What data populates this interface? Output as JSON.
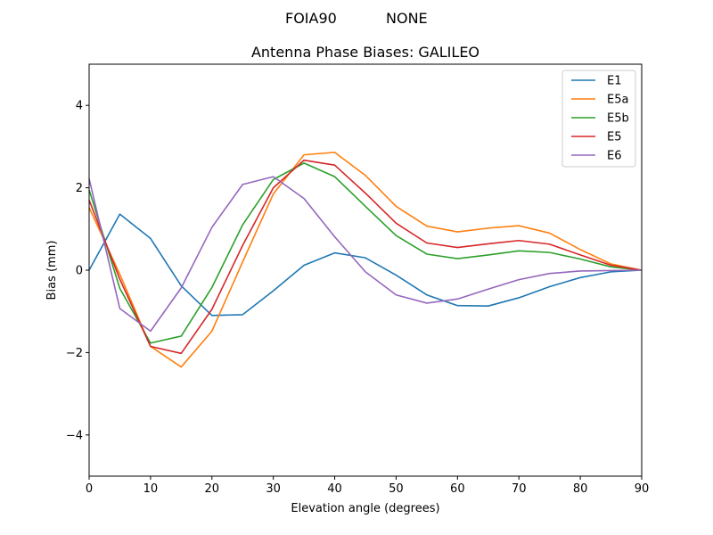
{
  "figure": {
    "suptitle_left": "FOIA90",
    "suptitle_right": "NONE"
  },
  "chart_data": {
    "type": "line",
    "title": "Antenna Phase Biases: GALILEO",
    "xlabel": "Elevation angle (degrees)",
    "ylabel": "Bias (mm)",
    "xlim": [
      0,
      90
    ],
    "ylim": [
      -5,
      5
    ],
    "xticks": [
      0,
      10,
      20,
      30,
      40,
      50,
      60,
      70,
      80,
      90
    ],
    "yticks": [
      -4,
      -2,
      0,
      2,
      4
    ],
    "xtick_labels": [
      "0",
      "10",
      "20",
      "30",
      "40",
      "50",
      "60",
      "70",
      "80",
      "90"
    ],
    "ytick_labels": [
      "−4",
      "−2",
      "0",
      "2",
      "4"
    ],
    "grid": false,
    "legend_position": "top-right",
    "x": [
      0,
      5,
      10,
      15,
      20,
      25,
      30,
      35,
      40,
      45,
      50,
      55,
      60,
      65,
      70,
      75,
      80,
      85,
      90
    ],
    "series": [
      {
        "name": "E1",
        "color": "#1f77b4",
        "values": [
          0.0,
          1.36,
          0.77,
          -0.38,
          -1.1,
          -1.08,
          -0.5,
          0.12,
          0.42,
          0.3,
          -0.12,
          -0.6,
          -0.86,
          -0.87,
          -0.67,
          -0.4,
          -0.18,
          -0.04,
          0.0
        ]
      },
      {
        "name": "E5a",
        "color": "#ff7f0e",
        "values": [
          1.52,
          -0.1,
          -1.85,
          -2.35,
          -1.48,
          0.2,
          1.85,
          2.8,
          2.86,
          2.3,
          1.55,
          1.07,
          0.93,
          1.02,
          1.08,
          0.9,
          0.5,
          0.15,
          0.0
        ]
      },
      {
        "name": "E5b",
        "color": "#2ca02c",
        "values": [
          1.95,
          -0.44,
          -1.77,
          -1.6,
          -0.42,
          1.1,
          2.2,
          2.6,
          2.27,
          1.55,
          0.84,
          0.39,
          0.28,
          0.37,
          0.47,
          0.43,
          0.27,
          0.08,
          0.0
        ]
      },
      {
        "name": "E5",
        "color": "#d62728",
        "values": [
          1.7,
          -0.22,
          -1.85,
          -2.02,
          -0.95,
          0.6,
          2.0,
          2.67,
          2.55,
          1.87,
          1.14,
          0.66,
          0.55,
          0.64,
          0.72,
          0.63,
          0.37,
          0.12,
          0.0
        ]
      },
      {
        "name": "E6",
        "color": "#9467bd",
        "values": [
          2.22,
          -0.93,
          -1.48,
          -0.43,
          1.04,
          2.08,
          2.27,
          1.74,
          0.81,
          -0.04,
          -0.6,
          -0.8,
          -0.7,
          -0.46,
          -0.23,
          -0.08,
          -0.02,
          -0.01,
          0.0
        ]
      }
    ]
  }
}
